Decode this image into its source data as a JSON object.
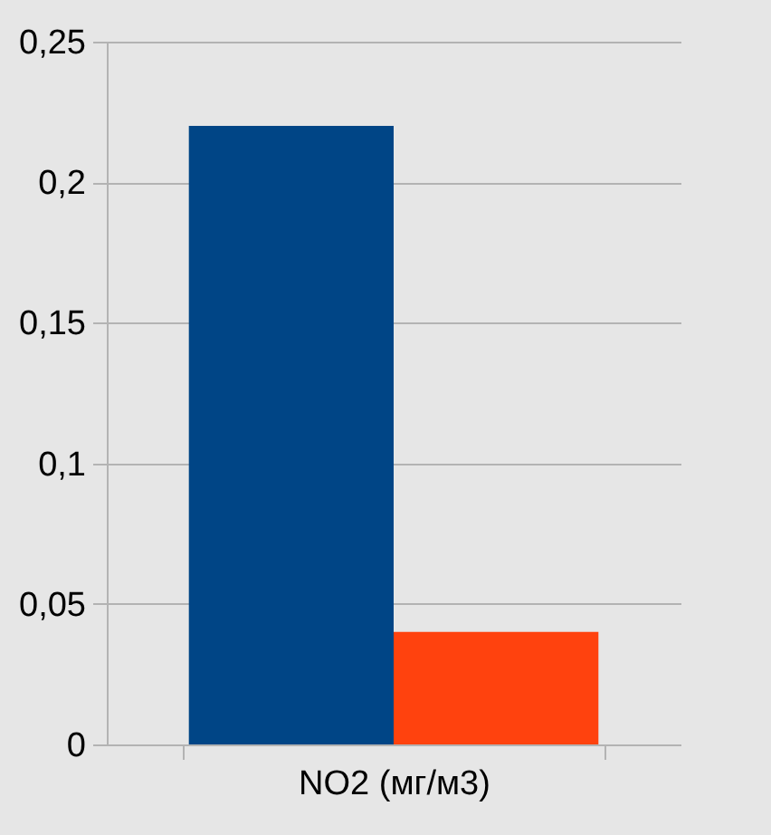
{
  "chart_data": {
    "type": "bar",
    "categories": [
      "NO2 (мг/м3)"
    ],
    "series": [
      {
        "color": "#004586",
        "values": [
          0.22
        ]
      },
      {
        "color": "#ff420e",
        "values": [
          0.04
        ]
      }
    ],
    "ylim": [
      0,
      0.25
    ],
    "yticks": [
      {
        "value": 0,
        "label": "0"
      },
      {
        "value": 0.05,
        "label": "0,05"
      },
      {
        "value": 0.1,
        "label": "0,1"
      },
      {
        "value": 0.15,
        "label": "0,15"
      },
      {
        "value": 0.2,
        "label": "0,2"
      },
      {
        "value": 0.25,
        "label": "0,25"
      }
    ],
    "grid": true,
    "legend": false
  }
}
